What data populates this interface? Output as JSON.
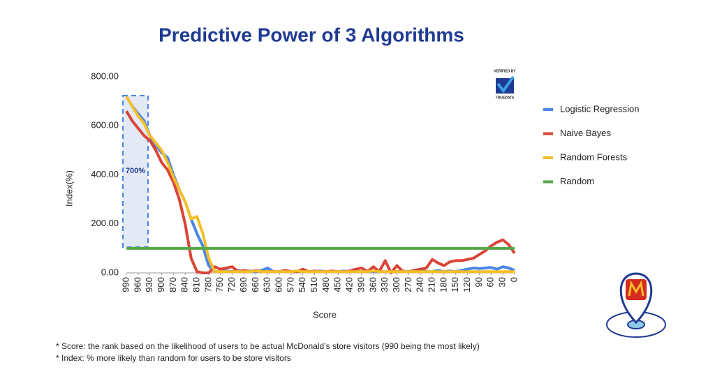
{
  "chart_data": {
    "type": "line",
    "title": "Predictive Power of 3 Algorithms",
    "xlabel": "Score",
    "ylabel": "Index(%)",
    "x": [
      990,
      975,
      960,
      945,
      930,
      915,
      900,
      885,
      870,
      855,
      840,
      825,
      810,
      795,
      780,
      765,
      750,
      735,
      720,
      705,
      690,
      675,
      660,
      645,
      630,
      615,
      600,
      585,
      570,
      555,
      540,
      525,
      510,
      495,
      480,
      465,
      450,
      435,
      420,
      405,
      390,
      375,
      360,
      345,
      330,
      315,
      300,
      285,
      270,
      255,
      240,
      225,
      210,
      195,
      180,
      165,
      150,
      135,
      120,
      105,
      90,
      75,
      60,
      45,
      30,
      15,
      0
    ],
    "xlim": [
      990,
      0
    ],
    "xticks": [
      990,
      960,
      930,
      900,
      870,
      840,
      810,
      780,
      750,
      720,
      690,
      660,
      630,
      600,
      570,
      540,
      510,
      480,
      450,
      420,
      390,
      360,
      330,
      300,
      270,
      240,
      210,
      180,
      150,
      120,
      90,
      60,
      30,
      0
    ],
    "ylim": [
      0,
      800
    ],
    "yticks": [
      {
        "value": 0,
        "label": "0.00"
      },
      {
        "value": 200,
        "label": "200.00"
      },
      {
        "value": 400,
        "label": "400.00"
      },
      {
        "value": 600,
        "label": "600.00"
      },
      {
        "value": 800,
        "label": "800.00"
      }
    ],
    "series": [
      {
        "name": "Logistic Regression",
        "color": "#4a86e8",
        "values": [
          720,
          680,
          650,
          620,
          560,
          520,
          490,
          470,
          400,
          340,
          290,
          220,
          160,
          110,
          30,
          5,
          5,
          8,
          5,
          10,
          5,
          8,
          5,
          10,
          20,
          5,
          5,
          10,
          5,
          5,
          8,
          5,
          5,
          8,
          5,
          5,
          5,
          8,
          5,
          5,
          5,
          8,
          5,
          5,
          5,
          5,
          5,
          8,
          5,
          10,
          15,
          5,
          5,
          10,
          5,
          8,
          5,
          10,
          15,
          20,
          18,
          20,
          22,
          15,
          25,
          20,
          10
        ]
      },
      {
        "name": "Naive Bayes",
        "color": "#db4437",
        "values": [
          660,
          620,
          590,
          560,
          540,
          500,
          450,
          420,
          370,
          300,
          200,
          60,
          5,
          0,
          0,
          25,
          15,
          20,
          25,
          5,
          10,
          5,
          10,
          5,
          5,
          5,
          5,
          10,
          5,
          5,
          15,
          5,
          8,
          5,
          5,
          8,
          5,
          5,
          8,
          15,
          20,
          5,
          25,
          5,
          50,
          0,
          30,
          5,
          5,
          10,
          15,
          20,
          55,
          40,
          30,
          45,
          50,
          50,
          55,
          60,
          75,
          90,
          110,
          125,
          135,
          115,
          80
        ]
      },
      {
        "name": "Random Forests",
        "color": "#f6bf26",
        "values": [
          720,
          680,
          640,
          610,
          560,
          530,
          500,
          450,
          390,
          340,
          290,
          220,
          230,
          160,
          60,
          5,
          5,
          5,
          5,
          5,
          5,
          5,
          8,
          5,
          5,
          5,
          5,
          5,
          5,
          8,
          5,
          5,
          5,
          5,
          5,
          5,
          5,
          5,
          5,
          5,
          5,
          5,
          8,
          5,
          5,
          5,
          5,
          5,
          5,
          5,
          5,
          5,
          5,
          5,
          5,
          5,
          5,
          5,
          5,
          5,
          5,
          5,
          5,
          5,
          5,
          5,
          5
        ]
      },
      {
        "name": "Random",
        "color": "#57a64a",
        "values": [
          100,
          100,
          100,
          100,
          100,
          100,
          100,
          100,
          100,
          100,
          100,
          100,
          100,
          100,
          100,
          100,
          100,
          100,
          100,
          100,
          100,
          100,
          100,
          100,
          100,
          100,
          100,
          100,
          100,
          100,
          100,
          100,
          100,
          100,
          100,
          100,
          100,
          100,
          100,
          100,
          100,
          100,
          100,
          100,
          100,
          100,
          100,
          100,
          100,
          100,
          100,
          100,
          100,
          100,
          100,
          100,
          100,
          100,
          100,
          100,
          100,
          100,
          100,
          100,
          100,
          100,
          100
        ]
      }
    ],
    "annotation": "700%",
    "badge_top": "VERIFIED BY",
    "badge_bottom": "TRUEDATA",
    "footnotes": [
      "* Score: the rank based on the likelihood of users to be actual McDonald’s store visitors (990 being the most likely)",
      "* Index: % more likely than random for users to be store visitors"
    ]
  }
}
